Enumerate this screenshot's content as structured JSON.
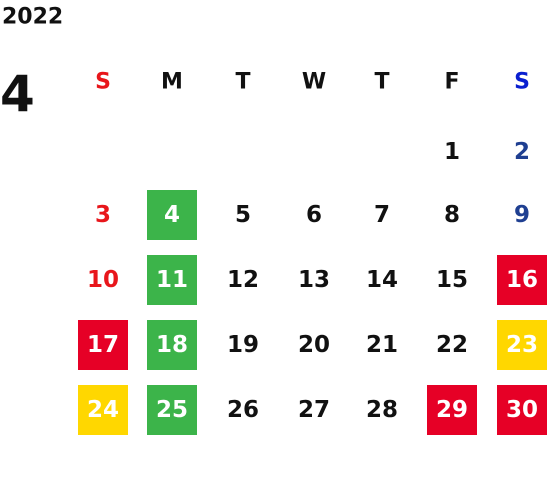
{
  "year": "2022",
  "month": "4",
  "weekdays": [
    {
      "label": "S",
      "color": "#e8161b"
    },
    {
      "label": "M",
      "color": "#111111"
    },
    {
      "label": "T",
      "color": "#111111"
    },
    {
      "label": "W",
      "color": "#111111"
    },
    {
      "label": "T",
      "color": "#111111"
    },
    {
      "label": "F",
      "color": "#111111"
    },
    {
      "label": "S",
      "color": "#0a1fd0"
    }
  ],
  "weeks": [
    [
      null,
      null,
      null,
      null,
      null,
      {
        "day": 1,
        "color": "#111111"
      },
      {
        "day": 2,
        "color": "#1f3f91"
      }
    ],
    [
      {
        "day": 3,
        "color": "#e8161b"
      },
      {
        "day": 4,
        "color": "#ffffff",
        "fill": "#3cb44a"
      },
      {
        "day": 5,
        "color": "#111111"
      },
      {
        "day": 6,
        "color": "#111111"
      },
      {
        "day": 7,
        "color": "#111111"
      },
      {
        "day": 8,
        "color": "#111111"
      },
      {
        "day": 9,
        "color": "#1f3f91"
      }
    ],
    [
      {
        "day": 10,
        "color": "#e8161b"
      },
      {
        "day": 11,
        "color": "#ffffff",
        "fill": "#3cb44a"
      },
      {
        "day": 12,
        "color": "#111111"
      },
      {
        "day": 13,
        "color": "#111111"
      },
      {
        "day": 14,
        "color": "#111111"
      },
      {
        "day": 15,
        "color": "#111111"
      },
      {
        "day": 16,
        "color": "#ffffff",
        "fill": "#e60026"
      }
    ],
    [
      {
        "day": 17,
        "color": "#ffffff",
        "fill": "#e60026"
      },
      {
        "day": 18,
        "color": "#ffffff",
        "fill": "#3cb44a"
      },
      {
        "day": 19,
        "color": "#111111"
      },
      {
        "day": 20,
        "color": "#111111"
      },
      {
        "day": 21,
        "color": "#111111"
      },
      {
        "day": 22,
        "color": "#111111"
      },
      {
        "day": 23,
        "color": "#ffffff",
        "fill": "#ffd700"
      }
    ],
    [
      {
        "day": 24,
        "color": "#ffffff",
        "fill": "#ffd700"
      },
      {
        "day": 25,
        "color": "#ffffff",
        "fill": "#3cb44a"
      },
      {
        "day": 26,
        "color": "#111111"
      },
      {
        "day": 27,
        "color": "#111111"
      },
      {
        "day": 28,
        "color": "#111111"
      },
      {
        "day": 29,
        "color": "#ffffff",
        "fill": "#e60026"
      },
      {
        "day": 30,
        "color": "#ffffff",
        "fill": "#e60026"
      }
    ]
  ]
}
